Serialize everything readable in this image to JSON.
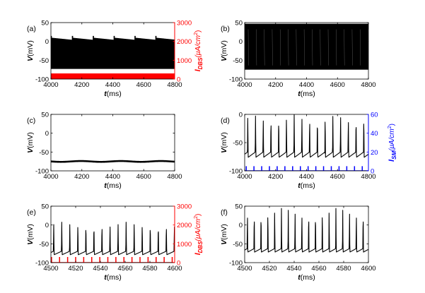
{
  "chart_data": [
    {
      "panel": "a",
      "type": "line",
      "label": "(a)",
      "title": "",
      "xlabel": "t",
      "xunit": "(ms)",
      "ylabel": "V",
      "yunit": "(mV)",
      "xlim": [
        4000,
        4800
      ],
      "xticks": [
        4000,
        4200,
        4400,
        4600,
        4800
      ],
      "ylim": [
        -100,
        50
      ],
      "yticks": [
        -100,
        -50,
        0,
        50
      ],
      "trace": "dense-oscillation",
      "trace_color": "#000000",
      "v_top": 10,
      "v_bottom": -73,
      "period_ms": 135,
      "right_axis": {
        "label_main": "I",
        "label_sub": "DBS",
        "label_unit": "(μA/cm",
        "label_sup": "2",
        "label_close": ")",
        "ylim": [
          0,
          3000
        ],
        "yticks": [
          0,
          1000,
          2000,
          3000
        ],
        "color": "#ff0000",
        "pulse_height": 300,
        "pulse_period_ms": 7.7
      }
    },
    {
      "panel": "b",
      "type": "line",
      "label": "(b)",
      "xlabel": "t",
      "xunit": "(ms)",
      "ylabel": "V",
      "yunit": "(mV)",
      "xlim": [
        4000,
        4800
      ],
      "xticks": [
        4000,
        4200,
        4400,
        4600,
        4800
      ],
      "ylim": [
        -100,
        50
      ],
      "yticks": [
        -100,
        -50,
        0,
        50
      ],
      "trace": "dense-spiking",
      "trace_color": "#000000",
      "v_top": 47,
      "v_bottom": -75
    },
    {
      "panel": "c",
      "type": "line",
      "label": "(c)",
      "xlabel": "t",
      "xunit": "(ms)",
      "ylabel": "V",
      "yunit": "(mV)",
      "xlim": [
        4000,
        4800
      ],
      "xticks": [
        4000,
        4200,
        4400,
        4600,
        4800
      ],
      "ylim": [
        -100,
        50
      ],
      "yticks": [
        -100,
        -50,
        0,
        50
      ],
      "trace": "flat-band",
      "trace_color": "#000000",
      "v_level": -75
    },
    {
      "panel": "d",
      "type": "line",
      "label": "(d)",
      "xlabel": "t",
      "xunit": "(ms)",
      "ylabel": "V",
      "yunit": "(mV)",
      "xlim": [
        4000,
        4800
      ],
      "xticks": [
        4000,
        4200,
        4400,
        4600,
        4800
      ],
      "ylim": [
        -100,
        0
      ],
      "yticks": [
        -100,
        -50,
        0
      ],
      "trace": "spike-train",
      "trace_color": "#000000",
      "spike_period_ms": 50,
      "spike_first_ms": 4018,
      "spike_peak": 0,
      "v_rest": -72,
      "right_axis": {
        "label_main": "I",
        "label_sub": "SM",
        "label_unit": "(μA/cm",
        "label_sup": "2",
        "label_close": ")",
        "ylim": [
          0,
          60
        ],
        "yticks": [
          0,
          20,
          40,
          60
        ],
        "color": "#0000ff",
        "pulse_height": 5,
        "pulse_period_ms": 50,
        "pulse_first_ms": 4010
      }
    },
    {
      "panel": "e",
      "type": "line",
      "label": "(e)",
      "xlabel": "t",
      "xunit": "(ms)",
      "ylabel": "V",
      "yunit": "(mV)",
      "xlim": [
        4500,
        4600
      ],
      "xticks": [
        4500,
        4520,
        4540,
        4560,
        4580,
        4600
      ],
      "ylim": [
        -100,
        50
      ],
      "yticks": [
        -100,
        -50,
        0,
        50
      ],
      "trace": "spike-train",
      "trace_color": "#000000",
      "spike_period_ms": 6.5,
      "spike_first_ms": 4502,
      "spike_peak": 8,
      "v_rest": -75,
      "right_axis": {
        "label_main": "I",
        "label_sub": "DBS",
        "label_unit": "(μA/cm",
        "label_sup": "2",
        "label_close": ")",
        "ylim": [
          0,
          3000
        ],
        "yticks": [
          0,
          1000,
          2000,
          3000
        ],
        "color": "#ff0000",
        "pulse_height": 300,
        "pulse_period_ms": 6.5,
        "pulse_first_ms": 4500.5
      }
    },
    {
      "panel": "f",
      "type": "line",
      "label": "(f)",
      "xlabel": "t",
      "xunit": "(ms)",
      "ylabel": "V",
      "yunit": "(mV)",
      "xlim": [
        4500,
        4600
      ],
      "xticks": [
        4500,
        4520,
        4540,
        4560,
        4580,
        4600
      ],
      "ylim": [
        -100,
        50
      ],
      "yticks": [
        -100,
        -50,
        0,
        50
      ],
      "trace": "spike-train",
      "trace_color": "#000000",
      "spike_period_ms": 5.5,
      "spike_first_ms": 4502,
      "spike_peak": 47,
      "v_rest": -68
    }
  ]
}
